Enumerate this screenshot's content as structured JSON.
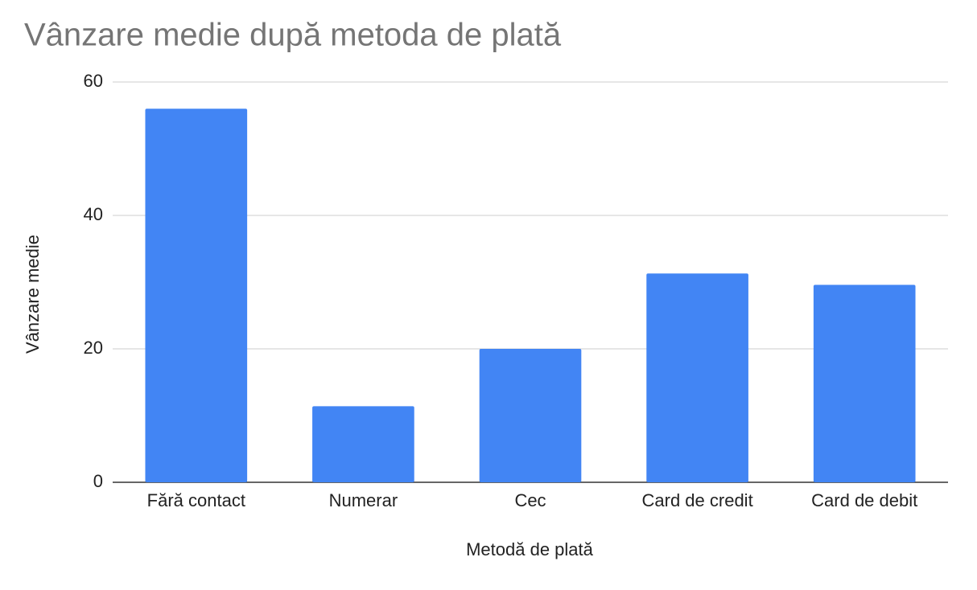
{
  "chart_data": {
    "type": "bar",
    "title": "Vânzare medie după metoda de plată",
    "x_label": "Metodă de plată",
    "y_label": "Vânzare medie",
    "categories": [
      "Fără contact",
      "Numerar",
      "Cec",
      "Card de credit",
      "Card de debit"
    ],
    "values": [
      56.0,
      11.4,
      20.0,
      31.3,
      29.6
    ],
    "color": "#4285f4",
    "ylim": [
      0,
      60
    ],
    "yticks": [
      0,
      20,
      40,
      60
    ],
    "grid": true
  }
}
